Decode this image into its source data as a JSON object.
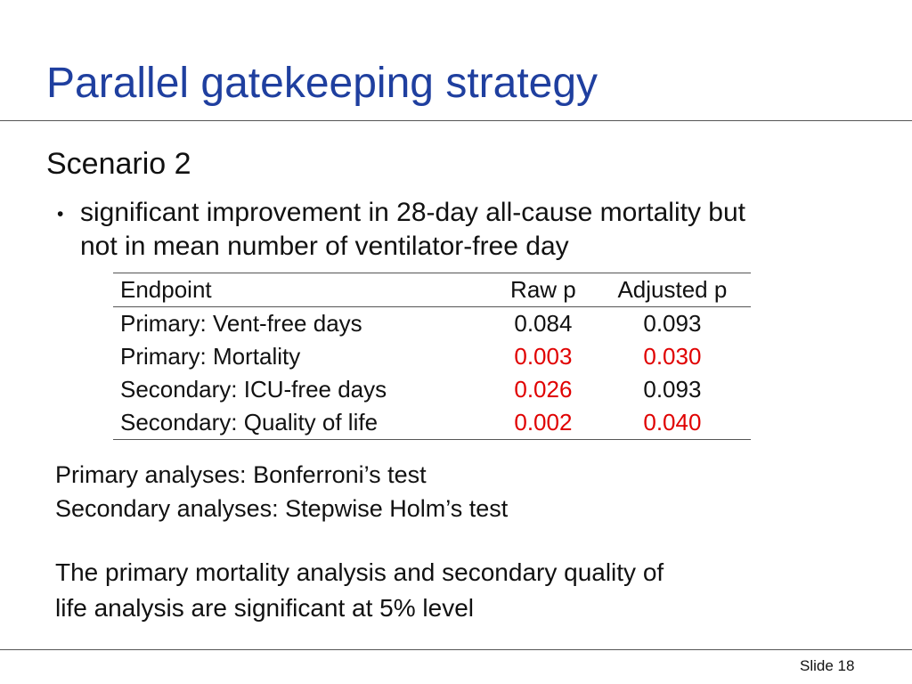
{
  "slide": {
    "title": "Parallel gatekeeping strategy",
    "subtitle": "Scenario 2",
    "bullet_char": "•",
    "bullet_lines": [
      "significant improvement in 28-day all-cause mortality but",
      "not in mean number of ventilator-free day"
    ],
    "table": {
      "headers": [
        "Endpoint",
        "Raw p",
        "Adjusted p"
      ],
      "rows": [
        {
          "endpoint": "Primary: Vent-free days",
          "raw_p": "0.084",
          "adjusted_p": "0.093",
          "raw_significant": false,
          "adjusted_significant": false
        },
        {
          "endpoint": "Primary: Mortality",
          "raw_p": "0.003",
          "adjusted_p": "0.030",
          "raw_significant": true,
          "adjusted_significant": true
        },
        {
          "endpoint": "Secondary: ICU-free days",
          "raw_p": "0.026",
          "adjusted_p": "0.093",
          "raw_significant": true,
          "adjusted_significant": false
        },
        {
          "endpoint": "Secondary: Quality of life",
          "raw_p": "0.002",
          "adjusted_p": "0.040",
          "raw_significant": true,
          "adjusted_significant": true
        }
      ]
    },
    "methods_lines": [
      "Primary analyses: Bonferroni’s test",
      "Secondary analyses: Stepwise Holm’s test"
    ],
    "conclusion_lines": [
      "The primary mortality analysis and secondary quality of",
      "life analysis are significant at 5% level"
    ],
    "footer": "Slide 18"
  },
  "colors": {
    "title": "#1f3f9f",
    "significant": "#e00000",
    "text": "#111111",
    "rule": "#555555"
  }
}
